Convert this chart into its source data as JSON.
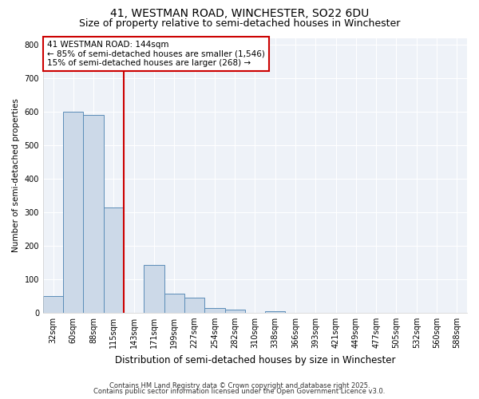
{
  "title": "41, WESTMAN ROAD, WINCHESTER, SO22 6DU",
  "subtitle": "Size of property relative to semi-detached houses in Winchester",
  "xlabel": "Distribution of semi-detached houses by size in Winchester",
  "ylabel": "Number of semi-detached properties",
  "bin_labels": [
    "32sqm",
    "60sqm",
    "88sqm",
    "115sqm",
    "143sqm",
    "171sqm",
    "199sqm",
    "227sqm",
    "254sqm",
    "282sqm",
    "310sqm",
    "338sqm",
    "366sqm",
    "393sqm",
    "421sqm",
    "449sqm",
    "477sqm",
    "505sqm",
    "532sqm",
    "560sqm",
    "588sqm"
  ],
  "bin_values": [
    50,
    600,
    590,
    315,
    0,
    142,
    56,
    44,
    15,
    10,
    0,
    5,
    0,
    0,
    0,
    0,
    0,
    0,
    0,
    0,
    0
  ],
  "bar_color": "#ccd9e8",
  "bar_edge_color": "#5b8db8",
  "annotation_line1": "41 WESTMAN ROAD: 144sqm",
  "annotation_line2": "← 85% of semi-detached houses are smaller (1,546)",
  "annotation_line3": "15% of semi-detached houses are larger (268) →",
  "annotation_box_color": "#cc0000",
  "prop_line_color": "#cc0000",
  "ylim": [
    0,
    820
  ],
  "yticks": [
    0,
    100,
    200,
    300,
    400,
    500,
    600,
    700,
    800
  ],
  "background_color": "#ffffff",
  "plot_bg_color": "#eef2f8",
  "grid_color": "#ffffff",
  "footer_line1": "Contains HM Land Registry data © Crown copyright and database right 2025.",
  "footer_line2": "Contains public sector information licensed under the Open Government Licence v3.0.",
  "title_fontsize": 10,
  "subtitle_fontsize": 9,
  "xlabel_fontsize": 8.5,
  "ylabel_fontsize": 7.5,
  "tick_fontsize": 7,
  "footer_fontsize": 6
}
